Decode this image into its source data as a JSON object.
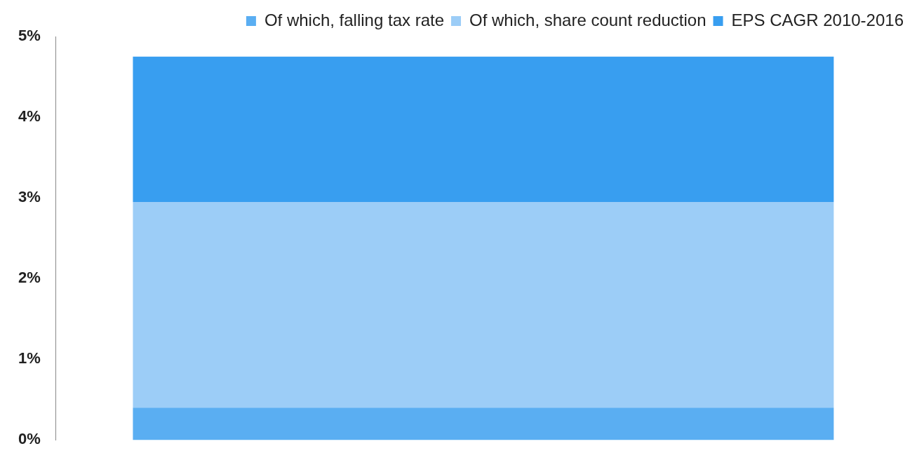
{
  "chart_data": {
    "type": "bar",
    "stacked": true,
    "categories": [
      null
    ],
    "series": [
      {
        "name": "Of which, falling tax rate",
        "color": "#5aaef2",
        "values": [
          0.4
        ]
      },
      {
        "name": "Of which, share count reduction",
        "color": "#9ccdf7",
        "values": [
          2.55
        ]
      },
      {
        "name": "EPS CAGR 2010-2016",
        "color": "#389ef0",
        "values": [
          1.8
        ]
      }
    ],
    "ylim": [
      0,
      5
    ],
    "yticks": [
      {
        "value": 0,
        "label": "0%"
      },
      {
        "value": 1,
        "label": "1%"
      },
      {
        "value": 2,
        "label": "2%"
      },
      {
        "value": 3,
        "label": "3%"
      },
      {
        "value": 4,
        "label": "4%"
      },
      {
        "value": 5,
        "label": "5%"
      }
    ],
    "grid": false,
    "legend": "top right"
  }
}
